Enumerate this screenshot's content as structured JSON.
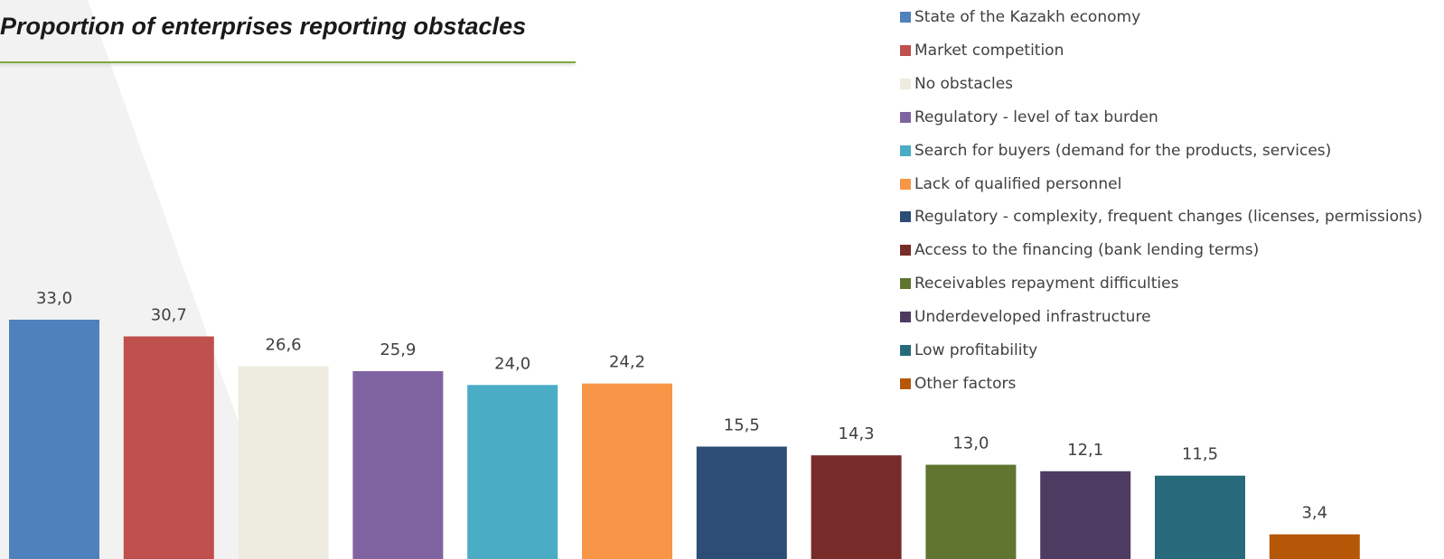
{
  "chart_data": {
    "type": "bar",
    "title": "Proportion of enterprises reporting obstacles",
    "categories": [
      "State of the Kazakh economy",
      "Market competition",
      "No obstacles",
      "Regulatory - level of tax burden",
      "Search for buyers (demand for the products, services)",
      "Lack of qualified personnel",
      "Regulatory - complexity, frequent changes (licenses, permissions)",
      "Access to the financing (bank lending terms)",
      "Receivables repayment difficulties",
      "Underdeveloped infrastructure",
      "Low profitability",
      "Other factors"
    ],
    "values": [
      33.0,
      30.7,
      26.6,
      25.9,
      24.0,
      24.2,
      15.5,
      14.3,
      13.0,
      12.1,
      11.5,
      3.4
    ],
    "value_labels": [
      "33,0",
      "30,7",
      "26,6",
      "25,9",
      "24,0",
      "24,2",
      "15,5",
      "14,3",
      "13,0",
      "12,1",
      "11,5",
      "3,4"
    ],
    "colors": [
      "#4f81bd",
      "#c0504d",
      "#eeece1",
      "#8064a2",
      "#4bacc6",
      "#f79646",
      "#2c4d75",
      "#772c2a",
      "#5f7530",
      "#4d3b62",
      "#276a7c",
      "#b65708"
    ],
    "legend_position": "top-right",
    "grid": false,
    "ylim": [
      0,
      35
    ]
  }
}
